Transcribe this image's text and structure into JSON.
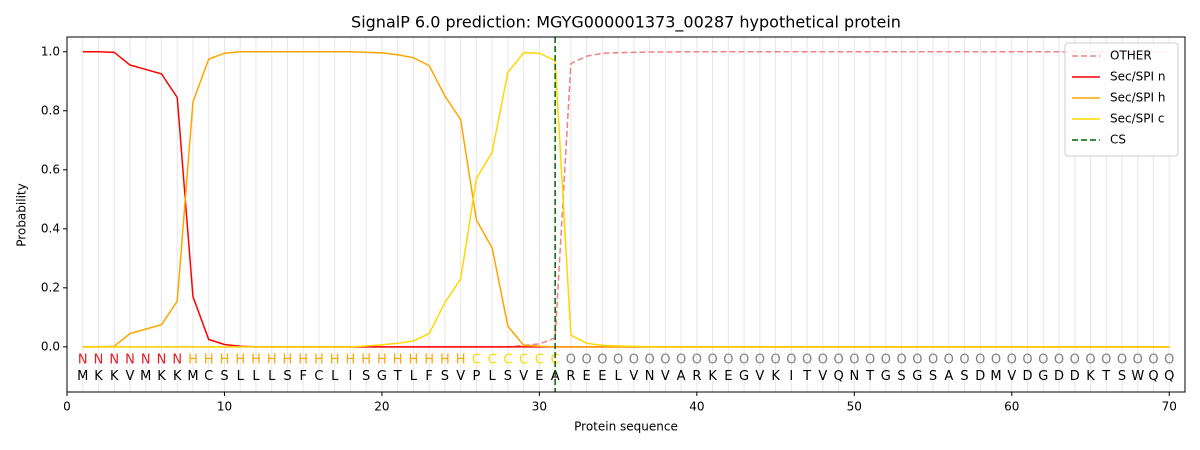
{
  "chart_data": {
    "type": "line",
    "title": "SignalP 6.0 prediction: MGYG000001373_00287 hypothetical protein",
    "x_label": "Protein sequence",
    "y_label": "Probability",
    "x": [
      1,
      2,
      3,
      4,
      5,
      6,
      7,
      8,
      9,
      10,
      11,
      12,
      13,
      14,
      15,
      16,
      17,
      18,
      19,
      20,
      21,
      22,
      23,
      24,
      25,
      26,
      27,
      28,
      29,
      30,
      31,
      32,
      33,
      34,
      35,
      36,
      37,
      38,
      39,
      40,
      41,
      42,
      43,
      44,
      45,
      46,
      47,
      48,
      49,
      50,
      51,
      52,
      53,
      54,
      55,
      56,
      57,
      58,
      59,
      60,
      61,
      62,
      63,
      64,
      65,
      66,
      67,
      68,
      69,
      70
    ],
    "residues": [
      "M",
      "K",
      "K",
      "V",
      "M",
      "K",
      "K",
      "M",
      "C",
      "S",
      "L",
      "L",
      "L",
      "S",
      "F",
      "C",
      "L",
      "I",
      "S",
      "G",
      "T",
      "L",
      "F",
      "S",
      "V",
      "P",
      "L",
      "S",
      "V",
      "E",
      "A",
      "R",
      "E",
      "E",
      "L",
      "V",
      "N",
      "V",
      "A",
      "R",
      "K",
      "E",
      "G",
      "V",
      "K",
      "I",
      "T",
      "V",
      "Q",
      "N",
      "T",
      "G",
      "S",
      "G",
      "S",
      "A",
      "S",
      "D",
      "M",
      "V",
      "D",
      "G",
      "D",
      "D",
      "K",
      "T",
      "S",
      "W",
      "Q",
      "Q"
    ],
    "region_labels": [
      "N",
      "N",
      "N",
      "N",
      "N",
      "N",
      "N",
      "H",
      "H",
      "H",
      "H",
      "H",
      "H",
      "H",
      "H",
      "H",
      "H",
      "H",
      "H",
      "H",
      "H",
      "H",
      "H",
      "H",
      "H",
      "C",
      "C",
      "C",
      "C",
      "C",
      "C",
      "O",
      "O",
      "O",
      "O",
      "O",
      "O",
      "O",
      "O",
      "O",
      "O",
      "O",
      "O",
      "O",
      "O",
      "O",
      "O",
      "O",
      "O",
      "O",
      "O",
      "O",
      "O",
      "O",
      "O",
      "O",
      "O",
      "O",
      "O",
      "O",
      "O",
      "O",
      "O",
      "O",
      "O",
      "O",
      "O",
      "O",
      "O",
      "O"
    ],
    "region_colors": {
      "N": "#e41a1c",
      "H": "#ffa500",
      "C": "#ffd700",
      "O": "#808080"
    },
    "series": [
      {
        "name": "OTHER",
        "color": "#f08080",
        "dashed": true,
        "values": [
          0,
          0,
          0,
          0,
          0,
          0,
          0,
          0,
          0,
          0,
          0,
          0,
          0,
          0,
          0,
          0,
          0,
          0,
          0,
          0,
          0,
          0,
          0,
          0,
          0,
          0,
          0,
          0,
          0.005,
          0.01,
          0.03,
          0.96,
          0.985,
          0.995,
          0.997,
          0.998,
          0.999,
          0.999,
          1,
          1,
          1,
          1,
          1,
          1,
          1,
          1,
          1,
          1,
          1,
          1,
          1,
          1,
          1,
          1,
          1,
          1,
          1,
          1,
          1,
          1,
          1,
          1,
          1,
          1,
          1,
          1,
          1,
          1,
          1,
          1
        ]
      },
      {
        "name": "Sec/SPI n",
        "color": "#ff0000",
        "dashed": false,
        "values": [
          1,
          1,
          0.998,
          0.955,
          0.94,
          0.925,
          0.845,
          0.17,
          0.025,
          0.008,
          0.002,
          0,
          0,
          0,
          0,
          0,
          0,
          0,
          0,
          0,
          0,
          0,
          0,
          0,
          0,
          0,
          0,
          0,
          0,
          0,
          0,
          0,
          0,
          0,
          0,
          0,
          0,
          0,
          0,
          0,
          0,
          0,
          0,
          0,
          0,
          0,
          0,
          0,
          0,
          0,
          0,
          0,
          0,
          0,
          0,
          0,
          0,
          0,
          0,
          0,
          0,
          0,
          0,
          0,
          0,
          0,
          0,
          0,
          0,
          0
        ]
      },
      {
        "name": "Sec/SPI h",
        "color": "#ffa500",
        "dashed": false,
        "values": [
          0,
          0,
          0.002,
          0.045,
          0.06,
          0.075,
          0.155,
          0.83,
          0.975,
          0.995,
          1,
          1,
          1,
          1,
          1,
          1,
          1,
          1,
          0.998,
          0.996,
          0.99,
          0.98,
          0.953,
          0.85,
          0.77,
          0.43,
          0.335,
          0.07,
          0.005,
          0.002,
          0,
          0,
          0,
          0,
          0,
          0,
          0,
          0,
          0,
          0,
          0,
          0,
          0,
          0,
          0,
          0,
          0,
          0,
          0,
          0,
          0,
          0,
          0,
          0,
          0,
          0,
          0,
          0,
          0,
          0,
          0,
          0,
          0,
          0,
          0,
          0,
          0,
          0,
          0,
          0
        ]
      },
      {
        "name": "Sec/SPI c",
        "color": "#ffd700",
        "dashed": false,
        "values": [
          0,
          0,
          0,
          0,
          0,
          0,
          0,
          0,
          0,
          0,
          0,
          0,
          0,
          0,
          0,
          0,
          0,
          0,
          0.003,
          0.007,
          0.012,
          0.02,
          0.045,
          0.15,
          0.23,
          0.57,
          0.66,
          0.93,
          0.997,
          0.995,
          0.97,
          0.04,
          0.012,
          0.005,
          0.003,
          0.002,
          0,
          0,
          0,
          0,
          0,
          0,
          0,
          0,
          0,
          0,
          0,
          0,
          0,
          0,
          0,
          0,
          0,
          0,
          0,
          0,
          0,
          0,
          0,
          0,
          0,
          0,
          0,
          0,
          0,
          0,
          0,
          0,
          0,
          0
        ]
      }
    ],
    "cleavage_site": {
      "name": "CS",
      "x": 31,
      "color": "#006400"
    },
    "xlim": [
      0,
      71
    ],
    "ylim": [
      -0.153,
      1.05
    ],
    "xticks": [
      0,
      10,
      20,
      30,
      40,
      50,
      60,
      70
    ],
    "yticks": [
      {
        "value": 0,
        "label": "0.0"
      },
      {
        "value": 0.2,
        "label": "0.2"
      },
      {
        "value": 0.4,
        "label": "0.4"
      },
      {
        "value": 0.6,
        "label": "0.6"
      },
      {
        "value": 0.8,
        "label": "0.8"
      },
      {
        "value": 1,
        "label": "1.0"
      }
    ],
    "legend": "upper right"
  }
}
